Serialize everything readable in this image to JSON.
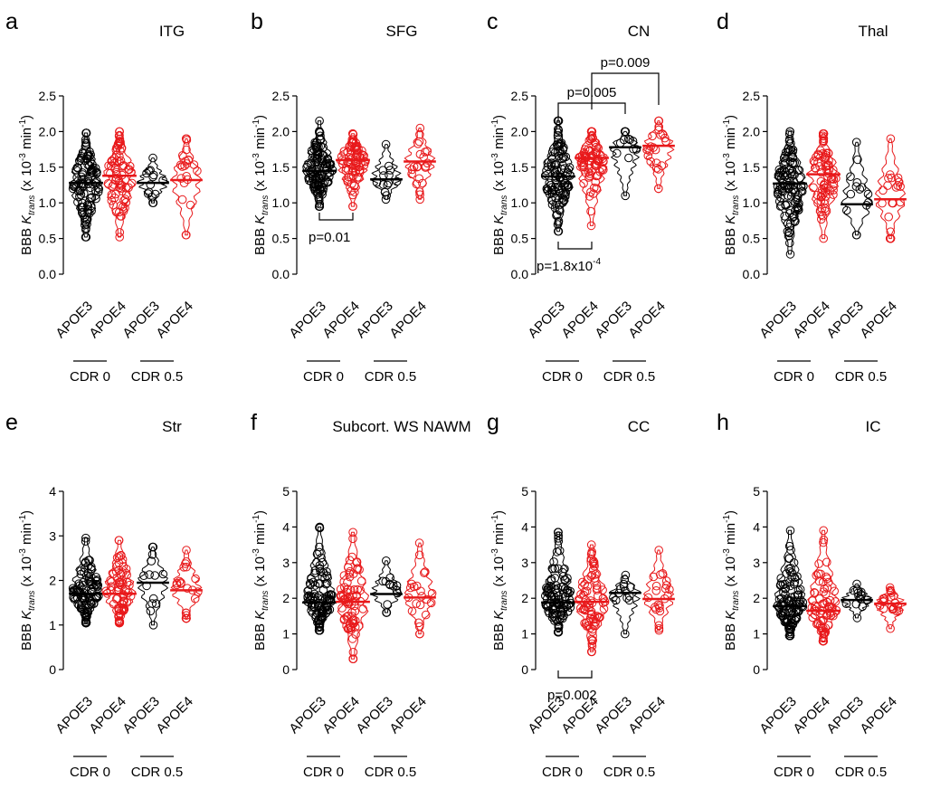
{
  "figure": {
    "ylabel_prefix": "BBB ",
    "ylabel_k": "K",
    "ylabel_sub": "trans",
    "ylabel_unit_a": " (x 10",
    "ylabel_exp": "-3",
    "ylabel_unit_b": " min",
    "ylabel_exp2": "-1",
    "ylabel_unit_c": ")",
    "colors": {
      "APOE3": "#000000",
      "APOE4": "#e8191b"
    },
    "group_labels": [
      "CDR 0",
      "CDR 0.5"
    ]
  },
  "chart_data": [
    {
      "type": "violin",
      "panel": "a",
      "title": "ITG",
      "categories": [
        "APOE3",
        "APOE4",
        "APOE3",
        "APOE4"
      ],
      "groups": [
        "CDR 0",
        "CDR 0",
        "CDR 0.5",
        "CDR 0.5"
      ],
      "ylim": [
        0,
        2.5
      ],
      "yticks": [
        "0.0",
        "0.5",
        "1.0",
        "1.5",
        "2.0",
        "2.5"
      ],
      "series": [
        {
          "name": "APOE3 CDR 0",
          "median": 1.28,
          "min": 0.52,
          "max": 1.98,
          "n": 110
        },
        {
          "name": "APOE4 CDR 0",
          "median": 1.38,
          "min": 0.52,
          "max": 2.0,
          "n": 75
        },
        {
          "name": "APOE3 CDR 0.5",
          "median": 1.28,
          "min": 1.0,
          "max": 1.63,
          "n": 14
        },
        {
          "name": "APOE4 CDR 0.5",
          "median": 1.32,
          "min": 0.55,
          "max": 1.9,
          "n": 22
        }
      ],
      "annotations": []
    },
    {
      "type": "violin",
      "panel": "b",
      "title": "SFG",
      "categories": [
        "APOE3",
        "APOE4",
        "APOE3",
        "APOE4"
      ],
      "groups": [
        "CDR 0",
        "CDR 0",
        "CDR 0.5",
        "CDR 0.5"
      ],
      "ylim": [
        0,
        2.5
      ],
      "yticks": [
        "0.0",
        "0.5",
        "1.0",
        "1.5",
        "2.0",
        "2.5"
      ],
      "series": [
        {
          "name": "APOE3 CDR 0",
          "median": 1.45,
          "min": 0.95,
          "max": 2.15,
          "n": 110
        },
        {
          "name": "APOE4 CDR 0",
          "median": 1.6,
          "min": 0.95,
          "max": 1.97,
          "n": 75
        },
        {
          "name": "APOE3 CDR 0.5",
          "median": 1.33,
          "min": 1.05,
          "max": 1.82,
          "n": 14
        },
        {
          "name": "APOE4 CDR 0.5",
          "median": 1.58,
          "min": 1.05,
          "max": 2.05,
          "n": 22
        }
      ],
      "annotations": [
        {
          "label": "p=0.01",
          "from": 0,
          "to": 1,
          "side": "below"
        }
      ]
    },
    {
      "type": "violin",
      "panel": "c",
      "title": "CN",
      "categories": [
        "APOE3",
        "APOE4",
        "APOE3",
        "APOE4"
      ],
      "groups": [
        "CDR 0",
        "CDR 0",
        "CDR 0.5",
        "CDR 0.5"
      ],
      "ylim": [
        0,
        2.5
      ],
      "yticks": [
        "0.0",
        "0.5",
        "1.0",
        "1.5",
        "2.0",
        "2.5"
      ],
      "series": [
        {
          "name": "APOE3 CDR 0",
          "median": 1.37,
          "min": 0.6,
          "max": 2.15,
          "n": 110
        },
        {
          "name": "APOE4 CDR 0",
          "median": 1.63,
          "min": 0.68,
          "max": 2.0,
          "n": 75
        },
        {
          "name": "APOE3 CDR 0.5",
          "median": 1.78,
          "min": 1.1,
          "max": 2.0,
          "n": 14
        },
        {
          "name": "APOE4 CDR 0.5",
          "median": 1.8,
          "min": 1.2,
          "max": 2.15,
          "n": 22
        }
      ],
      "annotations": [
        {
          "label": "p=1.8x10",
          "label_exp": "-4",
          "from": 0,
          "to": 1,
          "side": "below"
        },
        {
          "label": "p=0.005",
          "from": 0,
          "to": 2,
          "side": "above",
          "level": 1
        },
        {
          "label": "p=0.009",
          "from": 1,
          "to": 3,
          "side": "above",
          "level": 2
        }
      ]
    },
    {
      "type": "violin",
      "panel": "d",
      "title": "Thal",
      "categories": [
        "APOE3",
        "APOE4",
        "APOE3",
        "APOE4"
      ],
      "groups": [
        "CDR 0",
        "CDR 0",
        "CDR 0.5",
        "CDR 0.5"
      ],
      "ylim": [
        0,
        2.5
      ],
      "yticks": [
        "0.0",
        "0.5",
        "1.0",
        "1.5",
        "2.0",
        "2.5"
      ],
      "series": [
        {
          "name": "APOE3 CDR 0",
          "median": 1.27,
          "min": 0.28,
          "max": 2.0,
          "n": 110
        },
        {
          "name": "APOE4 CDR 0",
          "median": 1.4,
          "min": 0.5,
          "max": 1.97,
          "n": 75
        },
        {
          "name": "APOE3 CDR 0.5",
          "median": 0.98,
          "min": 0.55,
          "max": 1.85,
          "n": 14
        },
        {
          "name": "APOE4 CDR 0.5",
          "median": 1.05,
          "min": 0.5,
          "max": 1.9,
          "n": 22
        }
      ],
      "annotations": []
    },
    {
      "type": "violin",
      "panel": "e",
      "title": "Str",
      "categories": [
        "APOE3",
        "APOE4",
        "APOE3",
        "APOE4"
      ],
      "groups": [
        "CDR 0",
        "CDR 0",
        "CDR 0.5",
        "CDR 0.5"
      ],
      "ylim": [
        0,
        4
      ],
      "yticks": [
        "0",
        "1",
        "2",
        "3",
        "4"
      ],
      "series": [
        {
          "name": "APOE3 CDR 0",
          "median": 1.7,
          "min": 1.05,
          "max": 2.95,
          "n": 110
        },
        {
          "name": "APOE4 CDR 0",
          "median": 1.7,
          "min": 1.05,
          "max": 2.9,
          "n": 75
        },
        {
          "name": "APOE3 CDR 0.5",
          "median": 1.95,
          "min": 1.0,
          "max": 2.75,
          "n": 14
        },
        {
          "name": "APOE4 CDR 0.5",
          "median": 1.78,
          "min": 1.15,
          "max": 2.68,
          "n": 22
        }
      ],
      "annotations": []
    },
    {
      "type": "violin",
      "panel": "f",
      "title": "Subcort. WS NAWM",
      "categories": [
        "APOE3",
        "APOE4",
        "APOE3",
        "APOE4"
      ],
      "groups": [
        "CDR 0",
        "CDR 0",
        "CDR 0.5",
        "CDR 0.5"
      ],
      "ylim": [
        0,
        5
      ],
      "yticks": [
        "0",
        "1",
        "2",
        "3",
        "4",
        "5"
      ],
      "series": [
        {
          "name": "APOE3 CDR 0",
          "median": 1.88,
          "min": 1.1,
          "max": 4.0,
          "n": 110
        },
        {
          "name": "APOE4 CDR 0",
          "median": 1.9,
          "min": 0.3,
          "max": 3.85,
          "n": 75
        },
        {
          "name": "APOE3 CDR 0.5",
          "median": 2.12,
          "min": 1.6,
          "max": 3.05,
          "n": 14
        },
        {
          "name": "APOE4 CDR 0.5",
          "median": 2.02,
          "min": 1.0,
          "max": 3.55,
          "n": 22
        }
      ],
      "annotations": []
    },
    {
      "type": "violin",
      "panel": "g",
      "title": "CC",
      "categories": [
        "APOE3",
        "APOE4",
        "APOE3",
        "APOE4"
      ],
      "groups": [
        "CDR 0",
        "CDR 0",
        "CDR 0.5",
        "CDR 0.5"
      ],
      "ylim": [
        0,
        5
      ],
      "yticks": [
        "0",
        "1",
        "2",
        "3",
        "4",
        "5"
      ],
      "series": [
        {
          "name": "APOE3 CDR 0",
          "median": 1.88,
          "min": 1.05,
          "max": 3.85,
          "n": 110
        },
        {
          "name": "APOE4 CDR 0",
          "median": 1.9,
          "min": 0.5,
          "max": 3.5,
          "n": 75
        },
        {
          "name": "APOE3 CDR 0.5",
          "median": 2.15,
          "min": 1.0,
          "max": 2.65,
          "n": 14
        },
        {
          "name": "APOE4 CDR 0.5",
          "median": 1.98,
          "min": 1.1,
          "max": 3.35,
          "n": 22
        }
      ],
      "annotations": [
        {
          "label": "p=0.002",
          "from": 0,
          "to": 1,
          "side": "below"
        }
      ]
    },
    {
      "type": "violin",
      "panel": "h",
      "title": "IC",
      "categories": [
        "APOE3",
        "APOE4",
        "APOE3",
        "APOE4"
      ],
      "groups": [
        "CDR 0",
        "CDR 0",
        "CDR 0.5",
        "CDR 0.5"
      ],
      "ylim": [
        0,
        5
      ],
      "yticks": [
        "0",
        "1",
        "2",
        "3",
        "4",
        "5"
      ],
      "series": [
        {
          "name": "APOE3 CDR 0",
          "median": 1.78,
          "min": 0.95,
          "max": 3.9,
          "n": 110
        },
        {
          "name": "APOE4 CDR 0",
          "median": 1.65,
          "min": 0.8,
          "max": 3.9,
          "n": 75
        },
        {
          "name": "APOE3 CDR 0.5",
          "median": 1.95,
          "min": 1.45,
          "max": 2.4,
          "n": 14
        },
        {
          "name": "APOE4 CDR 0.5",
          "median": 1.85,
          "min": 1.15,
          "max": 2.3,
          "n": 22
        }
      ],
      "annotations": []
    }
  ]
}
